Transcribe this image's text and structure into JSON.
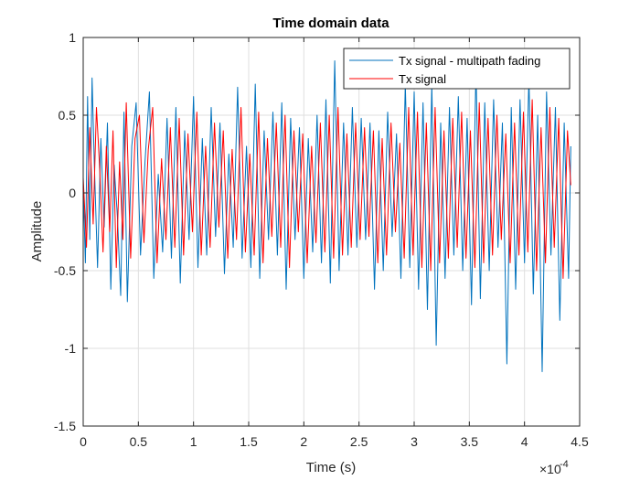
{
  "chart_data": {
    "type": "line",
    "title": "Time domain data",
    "xlabel": "Time (s)",
    "ylabel": "Amplitude",
    "xlim": [
      0,
      4.5
    ],
    "ylim": [
      -1.5,
      1
    ],
    "x_exponent_label": "×10",
    "x_exponent_power": "-4",
    "x_ticks": [
      0,
      0.5,
      1,
      1.5,
      2,
      2.5,
      3,
      3.5,
      4,
      4.5
    ],
    "x_tick_labels": [
      "0",
      "0.5",
      "1",
      "1.5",
      "2",
      "2.5",
      "3",
      "3.5",
      "4",
      "4.5"
    ],
    "y_ticks": [
      -1.5,
      -1,
      -0.5,
      0,
      0.5,
      1
    ],
    "y_tick_labels": [
      "-1.5",
      "-1",
      "-0.5",
      "0",
      "0.5",
      "1"
    ],
    "grid": true,
    "legend_position": "top-right",
    "series": [
      {
        "name": "Tx signal - multipath fading",
        "color": "#0072BD",
        "x": [
          0.0,
          0.02,
          0.04,
          0.06,
          0.08,
          0.1,
          0.13,
          0.16,
          0.19,
          0.22,
          0.25,
          0.28,
          0.31,
          0.34,
          0.37,
          0.4,
          0.44,
          0.48,
          0.52,
          0.56,
          0.6,
          0.64,
          0.68,
          0.72,
          0.76,
          0.8,
          0.84,
          0.88,
          0.92,
          0.96,
          1.0,
          1.04,
          1.08,
          1.12,
          1.16,
          1.2,
          1.24,
          1.28,
          1.32,
          1.36,
          1.4,
          1.44,
          1.48,
          1.52,
          1.56,
          1.6,
          1.64,
          1.68,
          1.72,
          1.76,
          1.8,
          1.84,
          1.88,
          1.92,
          1.96,
          2.0,
          2.04,
          2.08,
          2.12,
          2.16,
          2.2,
          2.24,
          2.28,
          2.32,
          2.36,
          2.4,
          2.44,
          2.48,
          2.52,
          2.56,
          2.6,
          2.64,
          2.68,
          2.72,
          2.76,
          2.8,
          2.84,
          2.88,
          2.92,
          2.96,
          3.0,
          3.04,
          3.08,
          3.12,
          3.16,
          3.2,
          3.24,
          3.28,
          3.32,
          3.36,
          3.4,
          3.44,
          3.48,
          3.52,
          3.56,
          3.6,
          3.64,
          3.68,
          3.72,
          3.76,
          3.8,
          3.84,
          3.88,
          3.92,
          3.96,
          4.0,
          4.04,
          4.08,
          4.12,
          4.16,
          4.2,
          4.24,
          4.28,
          4.32,
          4.36,
          4.4,
          4.42
        ],
        "values": [
          0.05,
          -0.45,
          0.62,
          -0.3,
          0.74,
          0.2,
          -0.48,
          0.35,
          -0.22,
          0.45,
          -0.62,
          0.18,
          -0.15,
          -0.66,
          0.52,
          -0.7,
          0.3,
          0.58,
          -0.4,
          0.2,
          0.65,
          -0.55,
          0.12,
          -0.38,
          0.48,
          -0.42,
          0.55,
          -0.58,
          0.4,
          -0.3,
          0.62,
          -0.48,
          0.35,
          -0.4,
          0.55,
          -0.28,
          0.45,
          -0.52,
          0.25,
          -0.35,
          0.68,
          -0.42,
          0.3,
          -0.48,
          0.7,
          -0.55,
          0.4,
          -0.3,
          0.52,
          -0.4,
          0.58,
          -0.62,
          0.48,
          -0.3,
          0.42,
          -0.55,
          0.35,
          -0.38,
          0.5,
          -0.45,
          0.6,
          -0.58,
          0.85,
          -0.5,
          0.45,
          -0.4,
          0.55,
          -0.35,
          0.48,
          -0.3,
          0.45,
          -0.62,
          0.4,
          -0.5,
          0.52,
          -0.28,
          0.38,
          -0.55,
          0.7,
          -0.48,
          0.65,
          -0.62,
          0.58,
          -0.75,
          0.7,
          -0.98,
          0.45,
          -0.55,
          0.55,
          -0.4,
          0.62,
          -0.5,
          0.48,
          -0.72,
          0.8,
          -0.68,
          0.58,
          -0.5,
          0.6,
          -0.35,
          0.45,
          -1.1,
          0.55,
          -0.62,
          0.6,
          -0.45,
          0.75,
          -0.65,
          0.5,
          -1.15,
          0.65,
          -0.4,
          0.55,
          -0.82,
          0.45,
          -0.55,
          0.3
        ]
      },
      {
        "name": "Tx signal",
        "color": "#FF0000",
        "x": [
          0.0,
          0.03,
          0.06,
          0.09,
          0.12,
          0.15,
          0.18,
          0.21,
          0.24,
          0.27,
          0.3,
          0.33,
          0.36,
          0.39,
          0.43,
          0.47,
          0.51,
          0.55,
          0.59,
          0.63,
          0.67,
          0.71,
          0.75,
          0.79,
          0.83,
          0.87,
          0.91,
          0.95,
          0.99,
          1.03,
          1.07,
          1.11,
          1.15,
          1.19,
          1.23,
          1.27,
          1.31,
          1.35,
          1.39,
          1.43,
          1.47,
          1.51,
          1.55,
          1.59,
          1.63,
          1.67,
          1.71,
          1.75,
          1.79,
          1.83,
          1.87,
          1.91,
          1.95,
          1.99,
          2.03,
          2.07,
          2.11,
          2.15,
          2.19,
          2.23,
          2.27,
          2.31,
          2.35,
          2.39,
          2.43,
          2.47,
          2.51,
          2.55,
          2.59,
          2.63,
          2.67,
          2.71,
          2.75,
          2.79,
          2.83,
          2.87,
          2.91,
          2.95,
          2.99,
          3.03,
          3.07,
          3.11,
          3.15,
          3.19,
          3.23,
          3.27,
          3.31,
          3.35,
          3.39,
          3.43,
          3.47,
          3.51,
          3.55,
          3.59,
          3.63,
          3.67,
          3.71,
          3.75,
          3.79,
          3.83,
          3.87,
          3.91,
          3.95,
          3.99,
          4.03,
          4.07,
          4.11,
          4.15,
          4.19,
          4.23,
          4.27,
          4.31,
          4.35,
          4.39,
          4.42
        ],
        "values": [
          0.1,
          -0.35,
          0.42,
          -0.2,
          0.55,
          0.15,
          -0.38,
          0.3,
          -0.25,
          0.4,
          -0.48,
          0.2,
          -0.3,
          0.58,
          -0.42,
          0.35,
          0.5,
          -0.32,
          0.28,
          0.55,
          -0.45,
          0.22,
          -0.3,
          0.42,
          -0.35,
          0.48,
          -0.4,
          0.38,
          -0.25,
          0.52,
          -0.4,
          0.3,
          -0.35,
          0.45,
          -0.22,
          0.4,
          -0.42,
          0.28,
          -0.3,
          0.55,
          -0.38,
          0.25,
          -0.4,
          0.52,
          -0.45,
          0.35,
          -0.28,
          0.45,
          -0.35,
          0.5,
          -0.48,
          0.4,
          -0.25,
          0.38,
          -0.45,
          0.3,
          -0.32,
          0.45,
          -0.38,
          0.5,
          -0.42,
          0.55,
          -0.4,
          0.38,
          -0.35,
          0.45,
          -0.3,
          0.42,
          -0.28,
          0.4,
          -0.45,
          0.35,
          -0.4,
          0.45,
          -0.25,
          0.32,
          -0.42,
          0.55,
          -0.4,
          0.52,
          -0.48,
          0.45,
          -0.5,
          0.55,
          -0.45,
          0.4,
          -0.42,
          0.48,
          -0.35,
          0.52,
          -0.42,
          0.4,
          -0.48,
          0.58,
          -0.45,
          0.48,
          -0.4,
          0.5,
          -0.3,
          0.38,
          -0.45,
          0.45,
          -0.4,
          0.52,
          -0.38,
          0.6,
          -0.5,
          0.42,
          -0.45,
          0.55,
          -0.35,
          0.48,
          -0.55,
          0.4,
          0.05
        ]
      }
    ]
  }
}
